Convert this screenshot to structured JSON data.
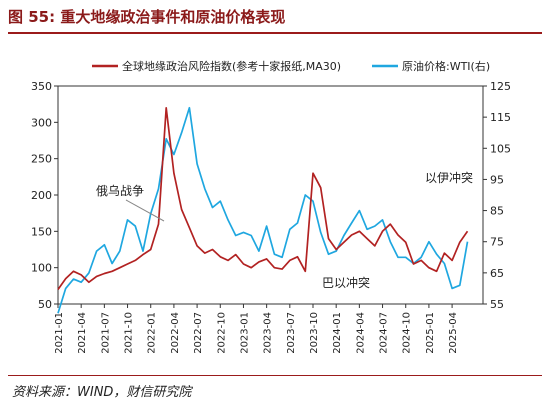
{
  "figure_title": "图 55:  重大地缘政治事件和原油价格表现",
  "source": "资料来源：WIND，财信研究院",
  "colors": {
    "left_series": "#b22222",
    "right_series": "#1fa7e0",
    "title": "#8b1a1a"
  },
  "chart_data": {
    "type": "line",
    "grid": false,
    "legend_position": "top",
    "x_ticks": [
      "2021-01",
      "2021-04",
      "2021-07",
      "2021-10",
      "2022-01",
      "2022-04",
      "2022-07",
      "2022-10",
      "2023-01",
      "2023-04",
      "2023-07",
      "2023-10",
      "2024-01",
      "2024-04",
      "2024-07",
      "2024-10",
      "2025-01",
      "2025-04"
    ],
    "y_left": {
      "min": 50,
      "max": 350,
      "ticks": [
        50,
        100,
        150,
        200,
        250,
        300,
        350
      ]
    },
    "y_right": {
      "min": 55,
      "max": 125,
      "ticks": [
        55,
        65,
        75,
        85,
        95,
        105,
        115,
        125
      ]
    },
    "series": [
      {
        "name": "全球地缘政治风险指数(参考十家报纸,MA30)",
        "axis": "left",
        "x": [
          "2021-01",
          "2021-02",
          "2021-03",
          "2021-04",
          "2021-05",
          "2021-06",
          "2021-07",
          "2021-08",
          "2021-09",
          "2021-10",
          "2021-11",
          "2021-12",
          "2022-01",
          "2022-02",
          "2022-03",
          "2022-04",
          "2022-05",
          "2022-06",
          "2022-07",
          "2022-08",
          "2022-09",
          "2022-10",
          "2022-11",
          "2022-12",
          "2023-01",
          "2023-02",
          "2023-03",
          "2023-04",
          "2023-05",
          "2023-06",
          "2023-07",
          "2023-08",
          "2023-09",
          "2023-10",
          "2023-11",
          "2023-12",
          "2024-01",
          "2024-02",
          "2024-03",
          "2024-04",
          "2024-05",
          "2024-06",
          "2024-07",
          "2024-08",
          "2024-09",
          "2024-10",
          "2024-11",
          "2024-12",
          "2025-01",
          "2025-02",
          "2025-03",
          "2025-04",
          "2025-05",
          "2025-06"
        ],
        "values": [
          70,
          85,
          95,
          90,
          80,
          88,
          92,
          95,
          100,
          105,
          110,
          118,
          125,
          160,
          320,
          230,
          180,
          155,
          130,
          120,
          125,
          115,
          110,
          118,
          105,
          100,
          108,
          112,
          100,
          98,
          110,
          115,
          95,
          230,
          210,
          140,
          125,
          135,
          145,
          150,
          140,
          130,
          150,
          160,
          145,
          135,
          105,
          110,
          100,
          95,
          120,
          110,
          135,
          150
        ]
      },
      {
        "name": "原油价格:WTI(右)",
        "axis": "right",
        "x": [
          "2021-01",
          "2021-02",
          "2021-03",
          "2021-04",
          "2021-05",
          "2021-06",
          "2021-07",
          "2021-08",
          "2021-09",
          "2021-10",
          "2021-11",
          "2021-12",
          "2022-01",
          "2022-02",
          "2022-03",
          "2022-04",
          "2022-05",
          "2022-06",
          "2022-07",
          "2022-08",
          "2022-09",
          "2022-10",
          "2022-11",
          "2022-12",
          "2023-01",
          "2023-02",
          "2023-03",
          "2023-04",
          "2023-05",
          "2023-06",
          "2023-07",
          "2023-08",
          "2023-09",
          "2023-10",
          "2023-11",
          "2023-12",
          "2024-01",
          "2024-02",
          "2024-03",
          "2024-04",
          "2024-05",
          "2024-06",
          "2024-07",
          "2024-08",
          "2024-09",
          "2024-10",
          "2024-11",
          "2024-12",
          "2025-01",
          "2025-02",
          "2025-03",
          "2025-04",
          "2025-05",
          "2025-06"
        ],
        "values": [
          52,
          60,
          63,
          62,
          65,
          72,
          74,
          68,
          72,
          82,
          80,
          72,
          84,
          92,
          108,
          103,
          110,
          118,
          100,
          92,
          86,
          88,
          82,
          77,
          78,
          77,
          72,
          80,
          71,
          70,
          79,
          81,
          90,
          88,
          78,
          71,
          72,
          77,
          81,
          85,
          79,
          80,
          82,
          75,
          70,
          70,
          68,
          70,
          75,
          71,
          68,
          60,
          61,
          75
        ]
      }
    ],
    "annotations": [
      "俄乌战争",
      "巴以冲突",
      "以伊冲突"
    ]
  }
}
